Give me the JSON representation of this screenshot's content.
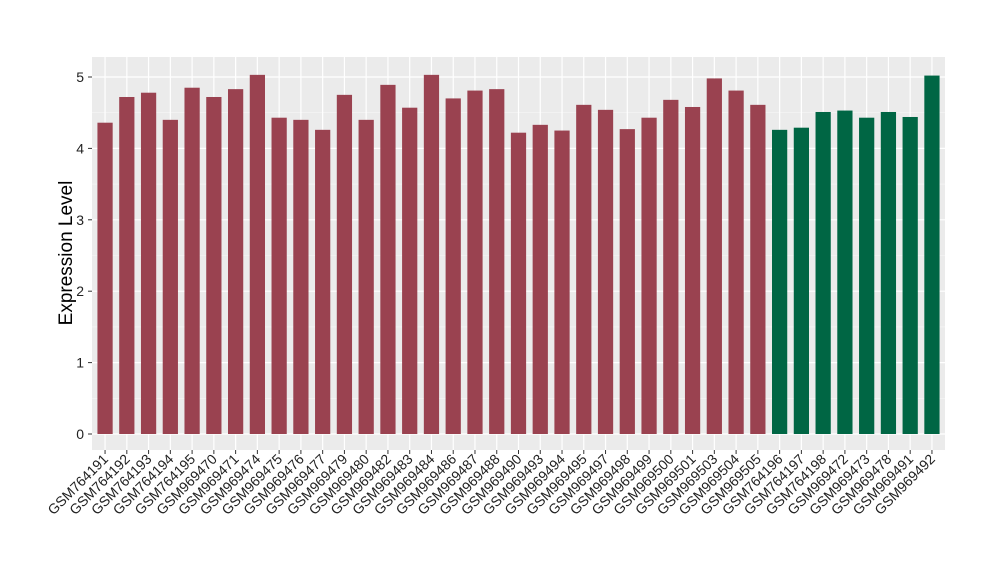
{
  "chart_data": {
    "type": "bar",
    "title": "",
    "xlabel": "",
    "ylabel": "Expression Level",
    "ylim": [
      0,
      5
    ],
    "yticks": [
      0,
      1,
      2,
      3,
      4,
      5
    ],
    "grid": true,
    "categories": [
      "GSM764191",
      "GSM764192",
      "GSM764193",
      "GSM764194",
      "GSM764195",
      "GSM969470",
      "GSM969471",
      "GSM969474",
      "GSM969475",
      "GSM969476",
      "GSM969477",
      "GSM969479",
      "GSM969480",
      "GSM969482",
      "GSM969483",
      "GSM969484",
      "GSM969486",
      "GSM969487",
      "GSM969488",
      "GSM969490",
      "GSM969493",
      "GSM969494",
      "GSM969495",
      "GSM969497",
      "GSM969498",
      "GSM969499",
      "GSM969500",
      "GSM969501",
      "GSM969503",
      "GSM969504",
      "GSM969505",
      "GSM764196",
      "GSM764197",
      "GSM764198",
      "GSM969472",
      "GSM969473",
      "GSM969478",
      "GSM969491",
      "GSM969492"
    ],
    "values": [
      4.36,
      4.72,
      4.78,
      4.4,
      4.85,
      4.72,
      4.83,
      5.03,
      4.43,
      4.4,
      4.26,
      4.75,
      4.4,
      4.89,
      4.57,
      5.03,
      4.7,
      4.81,
      4.83,
      4.22,
      4.33,
      4.25,
      4.61,
      4.54,
      4.27,
      4.43,
      4.68,
      4.58,
      4.98,
      4.81,
      4.61,
      4.26,
      4.29,
      4.51,
      4.53,
      4.43,
      4.51,
      4.44,
      5.02
    ],
    "groups": [
      "a",
      "a",
      "a",
      "a",
      "a",
      "a",
      "a",
      "a",
      "a",
      "a",
      "a",
      "a",
      "a",
      "a",
      "a",
      "a",
      "a",
      "a",
      "a",
      "a",
      "a",
      "a",
      "a",
      "a",
      "a",
      "a",
      "a",
      "a",
      "a",
      "a",
      "a",
      "b",
      "b",
      "b",
      "b",
      "b",
      "b",
      "b",
      "b"
    ],
    "colors": {
      "a": "#9a4250",
      "b": "#006644"
    }
  }
}
